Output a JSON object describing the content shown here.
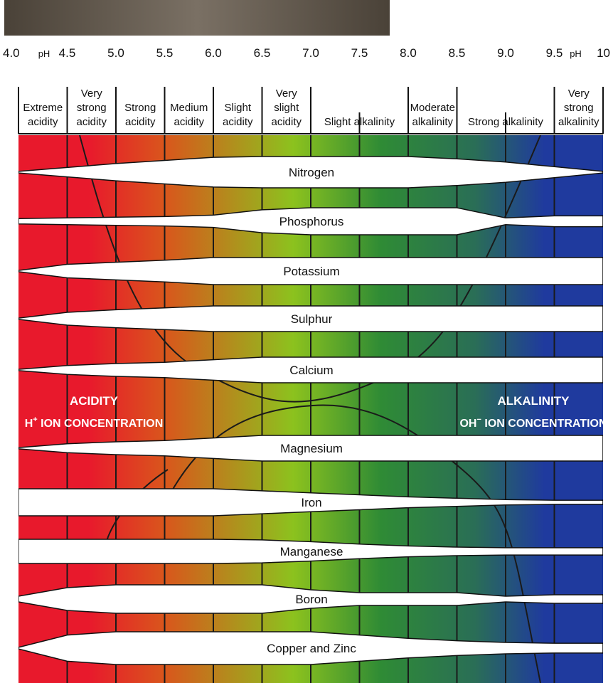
{
  "ph_ticks": [
    {
      "ph": 4.0,
      "label": "4.0"
    },
    {
      "ph": 4.5,
      "label": "4.5"
    },
    {
      "ph": 5.0,
      "label": "5.0"
    },
    {
      "ph": 5.5,
      "label": "5.5"
    },
    {
      "ph": 6.0,
      "label": "6.0"
    },
    {
      "ph": 6.5,
      "label": "6.5"
    },
    {
      "ph": 7.0,
      "label": "7.0"
    },
    {
      "ph": 7.5,
      "label": "7.5"
    },
    {
      "ph": 8.0,
      "label": "8.0"
    },
    {
      "ph": 8.5,
      "label": "8.5"
    },
    {
      "ph": 9.0,
      "label": "9.0"
    },
    {
      "ph": 9.5,
      "label": "9.5"
    },
    {
      "ph": 10.0,
      "label": "10"
    }
  ],
  "ph_unit_labels": [
    {
      "after_ph": 4.0,
      "text": "pH"
    },
    {
      "after_ph": 9.5,
      "text": "pH"
    }
  ],
  "ranges": [
    {
      "from": 4.0,
      "to": 4.5,
      "lines": [
        "Extreme",
        "acidity"
      ]
    },
    {
      "from": 4.5,
      "to": 5.0,
      "lines": [
        "Very",
        "strong",
        "acidity"
      ]
    },
    {
      "from": 5.0,
      "to": 5.5,
      "lines": [
        "Strong",
        "acidity"
      ]
    },
    {
      "from": 5.5,
      "to": 6.0,
      "lines": [
        "Medium",
        "acidity"
      ]
    },
    {
      "from": 6.0,
      "to": 6.5,
      "lines": [
        "Slight",
        "acidity"
      ]
    },
    {
      "from": 6.5,
      "to": 7.0,
      "lines": [
        "Very",
        "slight",
        "acidity"
      ]
    },
    {
      "from": 7.0,
      "to": 8.0,
      "lines": [
        "Slight alkalinity"
      ]
    },
    {
      "from": 8.0,
      "to": 8.5,
      "lines": [
        "Moderate",
        "alkalinity"
      ]
    },
    {
      "from": 8.5,
      "to": 9.5,
      "lines": [
        "Strong alkalinity"
      ]
    },
    {
      "from": 9.5,
      "to": 10.0,
      "lines": [
        "Very",
        "strong",
        "alkalinity"
      ]
    }
  ],
  "nutrients": [
    {
      "name": "Nitrogen",
      "availability": [
        0.05,
        0.3,
        0.55,
        0.75,
        0.95,
        1,
        1,
        1,
        1,
        0.85,
        0.65,
        0.35,
        0.05
      ]
    },
    {
      "name": "Phosphorus",
      "availability": [
        0.2,
        0.25,
        0.3,
        0.35,
        0.45,
        0.85,
        1,
        1,
        1,
        1,
        0.25,
        0.4,
        0.4
      ]
    },
    {
      "name": "Potassium",
      "availability": [
        0.05,
        0.5,
        0.65,
        0.8,
        1,
        1,
        1,
        1,
        1,
        1,
        1,
        1,
        1
      ]
    },
    {
      "name": "Sulphur",
      "availability": [
        0.05,
        0.5,
        0.7,
        0.85,
        1,
        1,
        1,
        1,
        1,
        1,
        1,
        1,
        1
      ]
    },
    {
      "name": "Calcium",
      "availability": [
        0.05,
        0.35,
        0.5,
        0.6,
        0.8,
        1,
        1,
        1,
        1,
        1,
        1,
        1,
        1
      ]
    },
    {
      "name": "Magnesium",
      "availability": [
        0.05,
        0.35,
        0.5,
        0.6,
        0.8,
        1,
        1,
        1,
        1,
        1,
        1,
        1,
        1
      ]
    },
    {
      "name": "Iron",
      "availability": [
        1,
        1,
        1,
        1,
        1,
        0.85,
        0.7,
        0.55,
        0.4,
        0.3,
        0.2,
        0.15,
        0.15
      ]
    },
    {
      "name": "Manganese",
      "availability": [
        1,
        1,
        1,
        1,
        1,
        0.95,
        0.8,
        0.6,
        0.45,
        0.35,
        0.3,
        0.3,
        0.3
      ]
    },
    {
      "name": "Boron",
      "availability": [
        0.2,
        0.8,
        1,
        1,
        1,
        1,
        0.65,
        0.45,
        0.45,
        0.45,
        0.2,
        0.3,
        0.3
      ]
    },
    {
      "name": "Copper and Zinc",
      "availability": [
        0.05,
        0.8,
        1,
        1,
        1,
        1,
        1,
        0.8,
        0.6,
        0.45,
        0.35,
        0.3,
        0.3
      ]
    }
  ],
  "acidity": {
    "line1": "ACIDITY",
    "line2_prefix": "H",
    "line2_sup": "+",
    "line2_rest": " ION CONCENTRATION"
  },
  "alkalinity": {
    "line1": "ALKALINITY",
    "line2_prefix": "OH",
    "line2_sup": "−",
    "line2_rest": " ION CONCENTRATION"
  },
  "colors": {
    "acid": "#e8192c",
    "orange": "#d9561c",
    "yellow_green": "#8cc21e",
    "green": "#2f8b35",
    "teal": "#2a6e56",
    "blue": "#1f3a9e",
    "band_fill": "#ffffff",
    "band_stroke": "#111111",
    "header_bar": "#5a5148"
  }
}
